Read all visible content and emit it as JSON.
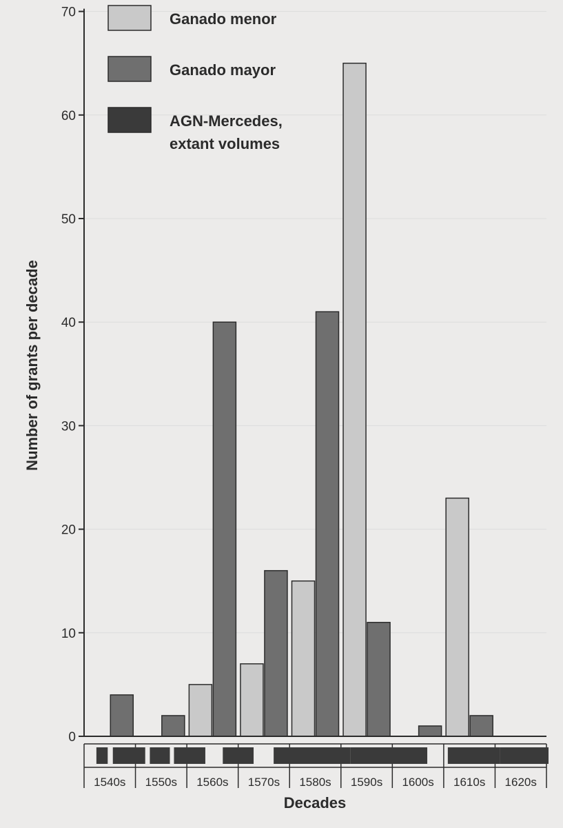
{
  "chart_data": {
    "type": "bar",
    "title": "",
    "xlabel": "Decades",
    "ylabel": "Number of grants per decade",
    "ylim": [
      0,
      70
    ],
    "yticks": [
      0,
      10,
      20,
      30,
      40,
      50,
      60,
      70
    ],
    "categories": [
      "1540s",
      "1550s",
      "1560s",
      "1570s",
      "1580s",
      "1590s",
      "1600s",
      "1610s",
      "1620s"
    ],
    "series": [
      {
        "name": "Ganado menor",
        "color": "#c9c9c9",
        "values": [
          0,
          0,
          5,
          7,
          15,
          65,
          0,
          23,
          0
        ]
      },
      {
        "name": "Ganado mayor",
        "color": "#6f6f6f",
        "values": [
          4,
          2,
          40,
          16,
          41,
          11,
          1,
          2,
          0
        ]
      }
    ],
    "legend": {
      "placement": "top-left",
      "entries": [
        {
          "label": "Ganado menor",
          "color": "#c9c9c9"
        },
        {
          "label": "Ganado mayor",
          "color": "#6f6f6f"
        },
        {
          "label": "AGN-Mercedes, extant volumes",
          "label_lines": [
            "AGN-Mercedes,",
            "extant volumes"
          ],
          "color": "#3a3a3a"
        }
      ]
    },
    "extant_volumes": {
      "name": "AGN-Mercedes, extant volumes",
      "color": "#3a3a3a",
      "ranges": [
        [
          1542.4,
          1544.6
        ],
        [
          1545.6,
          1551.9
        ],
        [
          1552.8,
          1556.7
        ],
        [
          1557.5,
          1563.6
        ],
        [
          1567.0,
          1573.0
        ],
        [
          1576.9,
          1591.8
        ],
        [
          1591.8,
          1606.8
        ],
        [
          1610.8,
          1621.0
        ],
        [
          1621.0,
          1630.4
        ]
      ]
    }
  }
}
